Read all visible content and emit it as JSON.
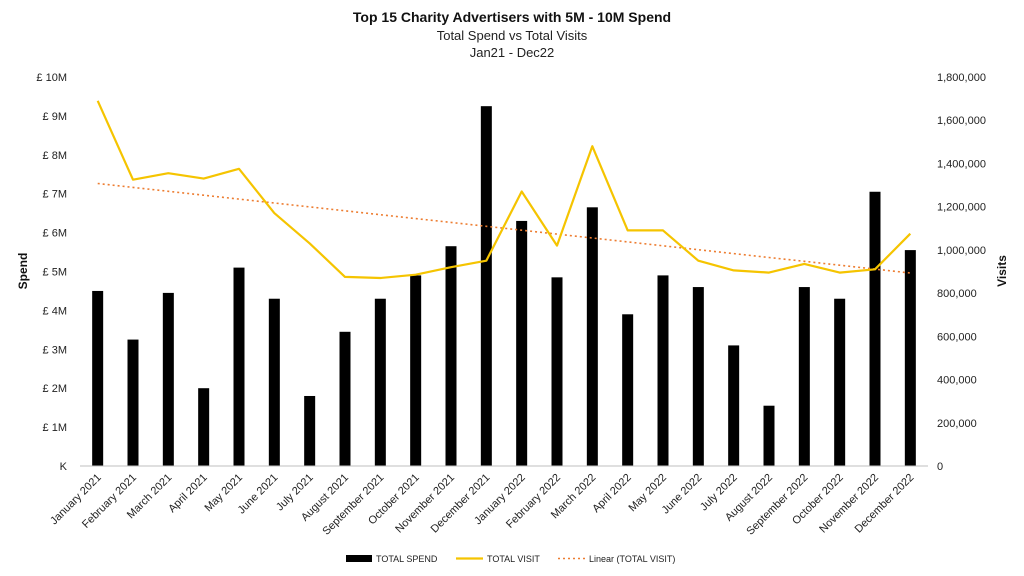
{
  "chart_data": {
    "type": "bar",
    "title": "Top 15 Charity Advertisers with 5M -  10M Spend",
    "subtitle_lines": [
      "Total Spend vs Total Visits",
      "Jan21 - Dec22"
    ],
    "ylabel": "Spend",
    "y2label": "Visits",
    "ylim": [
      0,
      10
    ],
    "y2lim": [
      0,
      1800000
    ],
    "y_tick_labels": [
      "K",
      "£ 1M",
      "£ 2M",
      "£ 3M",
      "£ 4M",
      "£ 5M",
      "£ 6M",
      "£ 7M",
      "£ 8M",
      "£ 9M",
      "£ 10M"
    ],
    "y2_tick_labels": [
      "0",
      "200,000",
      "400,000",
      "600,000",
      "800,000",
      "1,000,000",
      "1,200,000",
      "1,400,000",
      "1,600,000",
      "1,800,000"
    ],
    "categories": [
      "January 2021",
      "February 2021",
      "March 2021",
      "April 2021",
      "May 2021",
      "June 2021",
      "July 2021",
      "August 2021",
      "September 2021",
      "October 2021",
      "November 2021",
      "December 2021",
      "January 2022",
      "February 2022",
      "March 2022",
      "April 2022",
      "May 2022",
      "June 2022",
      "July 2022",
      "August 2022",
      "September 2022",
      "October 2022",
      "November 2022",
      "December 2022"
    ],
    "series": [
      {
        "name": "TOTAL SPEND",
        "type": "bar",
        "axis": "left",
        "color": "#000000",
        "values": [
          4.5,
          3.25,
          4.45,
          2.0,
          5.1,
          4.3,
          1.8,
          3.45,
          4.3,
          4.9,
          5.65,
          9.25,
          6.3,
          4.85,
          6.65,
          3.9,
          4.9,
          4.6,
          3.1,
          1.55,
          4.6,
          4.3,
          7.05,
          5.55
        ]
      },
      {
        "name": "TOTAL VISIT",
        "type": "line",
        "axis": "right",
        "color": "#f5c400",
        "values": [
          1690000,
          1325000,
          1355000,
          1330000,
          1375000,
          1170000,
          1030000,
          875000,
          870000,
          885000,
          920000,
          950000,
          1270000,
          1020000,
          1480000,
          1090000,
          1090000,
          950000,
          905000,
          895000,
          935000,
          895000,
          910000,
          1075000
        ]
      },
      {
        "name": "Linear (TOTAL VISIT)",
        "type": "trendline",
        "axis": "right",
        "color": "#ed7d31",
        "values": [
          1307000,
          1289000,
          1271000,
          1253000,
          1235000,
          1217000,
          1199000,
          1181000,
          1163000,
          1145000,
          1127000,
          1109000,
          1091000,
          1073000,
          1055000,
          1037000,
          1019000,
          1001000,
          983000,
          965000,
          947000,
          929000,
          911000,
          893000
        ]
      }
    ],
    "legend_position": "bottom",
    "grid": false
  }
}
